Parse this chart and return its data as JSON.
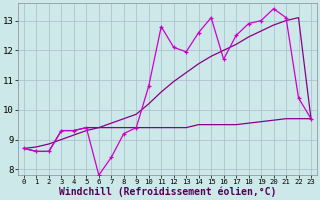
{
  "xlabel": "Windchill (Refroidissement éolien,°C)",
  "background_color": "#cce8e8",
  "grid_color": "#aabbcc",
  "line_color_jagged": "#cc00cc",
  "line_color_trend": "#880088",
  "line_color_flat": "#880088",
  "x_values": [
    0,
    1,
    2,
    3,
    4,
    5,
    6,
    7,
    8,
    9,
    10,
    11,
    12,
    13,
    14,
    15,
    16,
    17,
    18,
    19,
    20,
    21,
    22,
    23
  ],
  "y_jagged": [
    8.7,
    8.6,
    8.6,
    9.3,
    9.3,
    9.4,
    7.8,
    8.4,
    9.2,
    9.4,
    10.8,
    12.8,
    12.1,
    11.95,
    12.6,
    13.1,
    11.7,
    12.5,
    12.9,
    13.0,
    13.4,
    13.1,
    10.4,
    9.7
  ],
  "y_trend": [
    8.7,
    8.75,
    8.85,
    9.0,
    9.15,
    9.3,
    9.4,
    9.55,
    9.7,
    9.85,
    10.2,
    10.6,
    10.95,
    11.25,
    11.55,
    11.8,
    12.0,
    12.2,
    12.45,
    12.65,
    12.85,
    13.0,
    13.1,
    9.7
  ],
  "y_flat": [
    8.7,
    8.6,
    8.6,
    9.3,
    9.3,
    9.4,
    9.4,
    9.4,
    9.4,
    9.4,
    9.4,
    9.4,
    9.4,
    9.4,
    9.5,
    9.5,
    9.5,
    9.5,
    9.55,
    9.6,
    9.65,
    9.7,
    9.7,
    9.7
  ],
  "ylim": [
    7.8,
    13.6
  ],
  "yticks": [
    8,
    9,
    10,
    11,
    12,
    13
  ],
  "xlim": [
    -0.5,
    23.5
  ],
  "tick_fontsize": 6.5,
  "xlabel_fontsize": 7
}
